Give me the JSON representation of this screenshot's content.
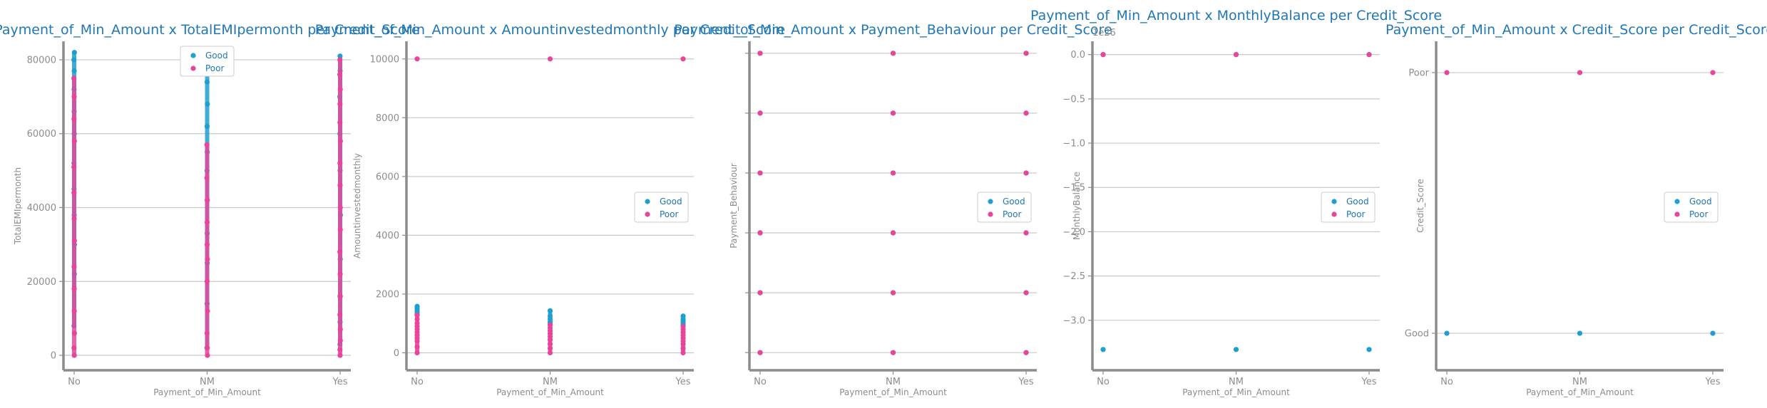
{
  "colors": {
    "good": "#1f9fd0",
    "poor": "#e8459a",
    "title": "#1f77b4",
    "axis": "#8c8c8c",
    "grid": "#c8c8c8"
  },
  "chart_data": [
    {
      "type": "scatter",
      "title": "Payment_of_Min_Amount x TotalEMIpermonth per Credit_Score",
      "xlabel": "Payment_of_Min_Amount",
      "ylabel": "TotalEMIpermonth",
      "x_categories": [
        "No",
        "NM",
        "Yes"
      ],
      "ylim": [
        -2500,
        85000
      ],
      "yticks": [
        0,
        20000,
        40000,
        60000,
        80000
      ],
      "ytick_labels": [
        "0",
        "20000",
        "40000",
        "60000",
        "80000"
      ],
      "legend": {
        "position": "upper center",
        "entries": [
          "Good",
          "Poor"
        ]
      },
      "series": [
        {
          "name": "Good",
          "x": [
            "No",
            "No",
            "No",
            "No",
            "No",
            "No",
            "No",
            "No",
            "No",
            "No",
            "No",
            "No",
            "NM",
            "NM",
            "NM",
            "NM",
            "NM",
            "NM",
            "NM",
            "NM",
            "NM",
            "NM",
            "NM",
            "NM",
            "Yes",
            "Yes",
            "Yes",
            "Yes",
            "Yes",
            "Yes",
            "Yes",
            "Yes",
            "Yes",
            "Yes"
          ],
          "y": [
            82000,
            80000,
            77000,
            72000,
            66000,
            60000,
            52000,
            45000,
            38000,
            30000,
            22000,
            8000,
            81000,
            78000,
            74000,
            68000,
            62000,
            55000,
            50000,
            42000,
            33000,
            25000,
            14000,
            2000,
            81000,
            77000,
            70000,
            60000,
            50000,
            38000,
            26000,
            16000,
            9000,
            3000
          ]
        },
        {
          "name": "Poor",
          "x": [
            "No",
            "No",
            "No",
            "No",
            "No",
            "No",
            "No",
            "No",
            "No",
            "No",
            "No",
            "No",
            "No",
            "No",
            "NM",
            "NM",
            "NM",
            "NM",
            "NM",
            "NM",
            "NM",
            "NM",
            "NM",
            "NM",
            "NM",
            "Yes",
            "Yes",
            "Yes",
            "Yes",
            "Yes",
            "Yes",
            "Yes",
            "Yes",
            "Yes",
            "Yes",
            "Yes",
            "Yes",
            "Yes",
            "Yes",
            "Yes",
            "Yes",
            "Yes",
            "Yes"
          ],
          "y": [
            75000,
            70000,
            64000,
            58000,
            51000,
            44000,
            37000,
            31000,
            24000,
            18000,
            12000,
            6000,
            2000,
            0,
            57000,
            48000,
            42000,
            36000,
            30000,
            26000,
            20000,
            12000,
            6000,
            2000,
            0,
            80000,
            76000,
            72000,
            68000,
            63000,
            58000,
            52000,
            46000,
            40000,
            34000,
            28000,
            22000,
            16000,
            11000,
            7000,
            4000,
            1500,
            0
          ]
        }
      ]
    },
    {
      "type": "scatter",
      "title": "Payment_of_Min_Amount x Amountinvestedmonthly per Credit_Score",
      "xlabel": "Payment_of_Min_Amount",
      "ylabel": "Amountinvestedmonthly",
      "x_categories": [
        "No",
        "NM",
        "Yes"
      ],
      "ylim": [
        -400,
        10600
      ],
      "yticks": [
        0,
        2000,
        4000,
        6000,
        8000,
        10000
      ],
      "ytick_labels": [
        "0",
        "2000",
        "4000",
        "6000",
        "8000",
        "10000"
      ],
      "legend": {
        "position": "center right",
        "entries": [
          "Good",
          "Poor"
        ]
      },
      "series": [
        {
          "name": "Good",
          "x": [
            "No",
            "No",
            "No",
            "No",
            "No",
            "NM",
            "NM",
            "NM",
            "NM",
            "NM",
            "Yes",
            "Yes",
            "Yes",
            "Yes",
            "Yes"
          ],
          "y": [
            1580,
            1500,
            1420,
            1350,
            1300,
            1430,
            1250,
            1150,
            1050,
            980,
            1250,
            1150,
            1080,
            1000,
            950
          ]
        },
        {
          "name": "Poor",
          "x": [
            "No",
            "No",
            "No",
            "No",
            "No",
            "No",
            "No",
            "No",
            "No",
            "No",
            "No",
            "No",
            "NM",
            "NM",
            "NM",
            "NM",
            "NM",
            "NM",
            "NM",
            "NM",
            "NM",
            "NM",
            "Yes",
            "Yes",
            "Yes",
            "Yes",
            "Yes",
            "Yes",
            "Yes",
            "Yes",
            "Yes",
            "Yes"
          ],
          "y": [
            10000,
            1280,
            1150,
            1000,
            900,
            800,
            700,
            600,
            500,
            400,
            200,
            0,
            10000,
            950,
            850,
            750,
            650,
            550,
            450,
            300,
            150,
            0,
            10000,
            900,
            800,
            700,
            600,
            500,
            400,
            300,
            150,
            0
          ]
        }
      ]
    },
    {
      "type": "scatter",
      "title": "Payment_of_Min_Amount x Payment_Behaviour per Credit_Score",
      "xlabel": "Payment_of_Min_Amount",
      "ylabel": "Payment_Behaviour",
      "x_categories": [
        "No",
        "NM",
        "Yes"
      ],
      "ylim": [
        -0.2,
        5.2
      ],
      "yticks": [
        0,
        1,
        2,
        3,
        4,
        5
      ],
      "ytick_labels": [
        "",
        "",
        "",
        "",
        "",
        ""
      ],
      "legend": {
        "position": "center right",
        "entries": [
          "Good",
          "Poor"
        ]
      },
      "series": [
        {
          "name": "Good",
          "x": [
            "No",
            "No",
            "No",
            "No",
            "No",
            "No",
            "NM",
            "NM",
            "NM",
            "NM",
            "NM",
            "NM",
            "Yes",
            "Yes",
            "Yes",
            "Yes",
            "Yes",
            "Yes"
          ],
          "y": [
            0,
            1,
            2,
            3,
            4,
            5,
            0,
            1,
            2,
            3,
            4,
            5,
            0,
            1,
            2,
            3,
            4,
            5
          ]
        },
        {
          "name": "Poor",
          "x": [
            "No",
            "No",
            "No",
            "No",
            "No",
            "No",
            "NM",
            "NM",
            "NM",
            "NM",
            "NM",
            "NM",
            "Yes",
            "Yes",
            "Yes",
            "Yes",
            "Yes",
            "Yes"
          ],
          "y": [
            0,
            1,
            2,
            3,
            4,
            5,
            0,
            1,
            2,
            3,
            4,
            5,
            0,
            1,
            2,
            3,
            4,
            5
          ]
        }
      ]
    },
    {
      "type": "scatter",
      "title": "Payment_of_Min_Amount x MonthlyBalance per Credit_Score",
      "xlabel": "Payment_of_Min_Amount",
      "ylabel": "MonthlyBalance",
      "x_categories": [
        "No",
        "NM",
        "Yes"
      ],
      "ylim": [
        -3.5,
        0.15
      ],
      "yticks": [
        0,
        -0.5,
        -1.0,
        -1.5,
        -2.0,
        -2.5,
        -3.0
      ],
      "ytick_labels": [
        "0.0",
        "−0.5",
        "−1.0",
        "−1.5",
        "−2.0",
        "−2.5",
        "−3.0"
      ],
      "offset_text": "1e26",
      "legend": {
        "position": "center right",
        "entries": [
          "Good",
          "Poor"
        ]
      },
      "series": [
        {
          "name": "Good",
          "x": [
            "No",
            "NM",
            "Yes",
            "No",
            "NM",
            "Yes"
          ],
          "y": [
            -3.33,
            -3.33,
            -3.33,
            0,
            0,
            0
          ]
        },
        {
          "name": "Poor",
          "x": [
            "No",
            "NM",
            "Yes"
          ],
          "y": [
            0,
            0,
            0
          ]
        }
      ]
    },
    {
      "type": "scatter",
      "title": "Payment_of_Min_Amount x Credit_Score per Credit_Score",
      "xlabel": "Payment_of_Min_Amount",
      "ylabel": "Credit_Score",
      "x_categories": [
        "No",
        "NM",
        "Yes"
      ],
      "ylim": [
        -0.12,
        1.12
      ],
      "yticks": [
        0,
        1
      ],
      "ytick_labels": [
        "Good",
        "Poor"
      ],
      "legend": {
        "position": "center right",
        "entries": [
          "Good",
          "Poor"
        ]
      },
      "series": [
        {
          "name": "Good",
          "x": [
            "No",
            "NM",
            "Yes"
          ],
          "y": [
            0,
            0,
            0
          ]
        },
        {
          "name": "Poor",
          "x": [
            "No",
            "NM",
            "Yes"
          ],
          "y": [
            1,
            1,
            1
          ]
        }
      ]
    }
  ]
}
